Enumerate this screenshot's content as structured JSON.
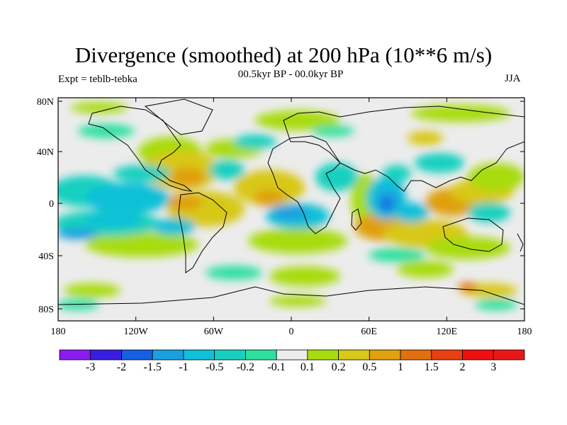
{
  "title": "Divergence (smoothed) at 200 hPa (10**6 m/s)",
  "subtitle_left": "Expt = teblb-tebka",
  "subtitle_center": "00.5kyr BP - 00.0kyr BP",
  "subtitle_right": "JJA",
  "y_ticks": [
    "80N",
    "40N",
    "0",
    "40S",
    "80S"
  ],
  "x_ticks": [
    "180",
    "120W",
    "60W",
    "0",
    "60E",
    "120E",
    "180"
  ],
  "colorbar": {
    "labels": [
      "-3",
      "-2",
      "-1.5",
      "-1",
      "-0.5",
      "-0.2",
      "-0.1",
      "0.1",
      "0.2",
      "0.5",
      "1",
      "1.5",
      "2",
      "3"
    ],
    "colors": [
      "#8a1cf0",
      "#3a1ee0",
      "#1560e0",
      "#1aa0e0",
      "#10c0d8",
      "#18d0c0",
      "#2fe0a0",
      "#ececec",
      "#a8dc10",
      "#d8c818",
      "#e0a010",
      "#e07010",
      "#e84010",
      "#f01010",
      "#e81818"
    ]
  },
  "map_data": {
    "variable": "200 hPa divergence difference (smoothed)",
    "units": "10**6 m/s",
    "lon_range": [
      -180,
      180
    ],
    "lat_range": [
      -90,
      90
    ]
  }
}
